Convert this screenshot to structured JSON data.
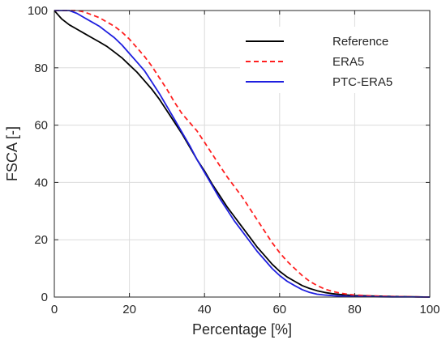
{
  "chart_data": {
    "type": "line",
    "title": "",
    "xlabel": "Percentage [%]",
    "ylabel": "FSCA [-]",
    "xlim": [
      0,
      100
    ],
    "ylim": [
      0,
      100
    ],
    "xticks": [
      0,
      20,
      40,
      60,
      80,
      100
    ],
    "yticks": [
      0,
      20,
      40,
      60,
      80,
      100
    ],
    "grid": true,
    "legend_position": "top-right",
    "series": [
      {
        "name": "Reference",
        "color": "#000000",
        "dash": "solid",
        "x": [
          0,
          1,
          2,
          4,
          6,
          8,
          10,
          12,
          14,
          16,
          18,
          20,
          22,
          24,
          26,
          28,
          30,
          32,
          34,
          36,
          38,
          40,
          42,
          44,
          46,
          48,
          50,
          52,
          54,
          56,
          58,
          60,
          62,
          64,
          66,
          68,
          70,
          72,
          74,
          76,
          78,
          80,
          85,
          90,
          95,
          100
        ],
        "y": [
          100,
          98.5,
          97,
          95,
          93.5,
          92,
          90.5,
          89,
          87.5,
          85.5,
          83.5,
          81,
          78.5,
          75.5,
          72.5,
          69,
          65,
          61,
          57,
          52.5,
          48,
          44,
          39.5,
          35.5,
          31.5,
          28,
          24.5,
          21,
          17.5,
          14.5,
          11.5,
          9,
          7,
          5.5,
          4,
          3,
          2.2,
          1.6,
          1.2,
          0.9,
          0.7,
          0.5,
          0.35,
          0.2,
          0.1,
          0
        ]
      },
      {
        "name": "ERA5",
        "color": "#ff1f1f",
        "dash": "dashed",
        "x": [
          0,
          2,
          4,
          6,
          8,
          10,
          12,
          14,
          16,
          18,
          20,
          22,
          24,
          26,
          28,
          30,
          32,
          34,
          36,
          38,
          40,
          42,
          44,
          46,
          48,
          50,
          52,
          54,
          56,
          58,
          60,
          62,
          64,
          66,
          68,
          70,
          72,
          74,
          76,
          78,
          80,
          85,
          90,
          95,
          100
        ],
        "y": [
          100,
          100,
          100,
          100,
          99.5,
          98.5,
          97.5,
          96,
          94.5,
          92.5,
          90,
          87,
          84,
          80.5,
          76.5,
          72.5,
          68,
          64,
          61,
          58,
          54,
          50,
          46,
          42,
          38.5,
          35,
          31,
          27,
          23,
          19,
          15.5,
          12.5,
          10,
          7.5,
          5.5,
          4,
          2.8,
          2,
          1.4,
          1,
          0.7,
          0.4,
          0.2,
          0.1,
          0
        ]
      },
      {
        "name": "PTC-ERA5",
        "color": "#1f1fdf",
        "dash": "solid",
        "x": [
          0,
          2,
          4,
          6,
          8,
          10,
          12,
          14,
          16,
          18,
          20,
          22,
          24,
          26,
          28,
          30,
          32,
          34,
          36,
          38,
          40,
          42,
          44,
          46,
          48,
          50,
          52,
          54,
          56,
          58,
          60,
          62,
          64,
          66,
          68,
          70,
          72,
          74,
          76,
          78,
          80,
          85,
          90,
          95,
          100
        ],
        "y": [
          100,
          100,
          100,
          99,
          97.5,
          96,
          94.5,
          92.5,
          90.5,
          88,
          85,
          82,
          79,
          75,
          71,
          66.5,
          62,
          57.5,
          53,
          48,
          43.5,
          39,
          34.5,
          30.5,
          26.5,
          23,
          19.5,
          16,
          13,
          10,
          7.5,
          5.5,
          4,
          2.6,
          1.6,
          1,
          0.7,
          0.5,
          0.35,
          0.25,
          0.2,
          0.1,
          0.05,
          0.02,
          0
        ]
      }
    ]
  }
}
